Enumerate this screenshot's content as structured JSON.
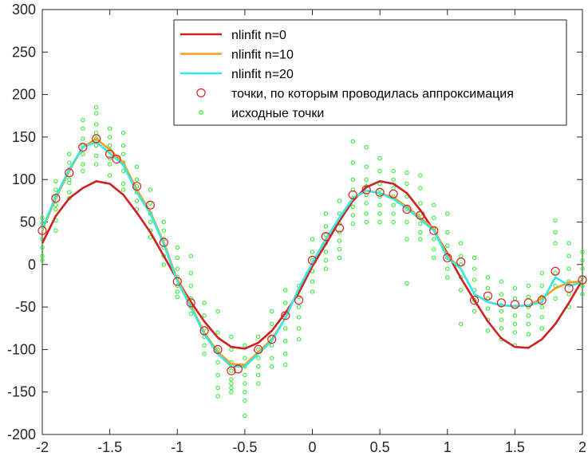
{
  "chart_data": {
    "type": "scatter",
    "xlim": [
      -2,
      2
    ],
    "ylim": [
      -200,
      300
    ],
    "x_ticks": [
      -2,
      -1.5,
      -1,
      -0.5,
      0,
      0.5,
      1,
      1.5,
      2
    ],
    "y_ticks": [
      -200,
      -150,
      -100,
      -50,
      0,
      50,
      100,
      150,
      200,
      250,
      300
    ],
    "x_tick_labels": [
      "-2",
      "-1.5",
      "-1",
      "-0.5",
      "0",
      "0.5",
      "1",
      "1.5",
      "2"
    ],
    "y_tick_labels": [
      "-200",
      "-150",
      "-100",
      "-50",
      "0",
      "50",
      "100",
      "150",
      "200",
      "250",
      "300"
    ],
    "grid": false,
    "legend_position": "top-right",
    "series": [
      {
        "name": "nlinfit n=0",
        "kind": "line",
        "color": "#cc2222",
        "x": [
          -2,
          -1.9,
          -1.8,
          -1.7,
          -1.6,
          -1.5,
          -1.4,
          -1.3,
          -1.2,
          -1.1,
          -1.0,
          -0.9,
          -0.8,
          -0.7,
          -0.6,
          -0.5,
          -0.4,
          -0.3,
          -0.2,
          -0.1,
          0.0,
          0.1,
          0.2,
          0.3,
          0.4,
          0.5,
          0.6,
          0.7,
          0.8,
          0.9,
          1.0,
          1.1,
          1.2,
          1.3,
          1.4,
          1.5,
          1.6,
          1.7,
          1.8,
          1.9,
          2.0
        ],
        "y": [
          25,
          57,
          78,
          90,
          98,
          95,
          82,
          61,
          38,
          10,
          -18,
          -44,
          -67,
          -86,
          -97,
          -99,
          -92,
          -78,
          -57,
          -33,
          -2,
          24,
          51,
          75,
          91,
          98,
          95,
          84,
          64,
          40,
          13,
          -16,
          -42,
          -67,
          -87,
          -97,
          -98,
          -88,
          -70,
          -45,
          -18
        ]
      },
      {
        "name": "nlinfit n=10",
        "kind": "line",
        "color": "#f0a020",
        "x": [
          -2,
          -1.9,
          -1.8,
          -1.7,
          -1.6,
          -1.5,
          -1.4,
          -1.3,
          -1.2,
          -1.1,
          -1.0,
          -0.9,
          -0.8,
          -0.7,
          -0.6,
          -0.5,
          -0.4,
          -0.3,
          -0.2,
          -0.1,
          0.0,
          0.1,
          0.2,
          0.3,
          0.4,
          0.5,
          0.6,
          0.7,
          0.8,
          0.9,
          1.0,
          1.1,
          1.2,
          1.3,
          1.4,
          1.5,
          1.6,
          1.7,
          1.8,
          1.9,
          2.0
        ],
        "y": [
          40,
          78,
          110,
          138,
          148,
          135,
          120,
          88,
          62,
          26,
          -18,
          -48,
          -80,
          -103,
          -117,
          -118,
          -103,
          -88,
          -63,
          -28,
          2,
          30,
          55,
          78,
          87,
          84,
          79,
          68,
          55,
          42,
          10,
          -5,
          -35,
          -44,
          -48,
          -49,
          -48,
          -40,
          -28,
          -21,
          -20
        ]
      },
      {
        "name": "nlinfit n=20",
        "kind": "line",
        "color": "#33e8e8",
        "x": [
          -2,
          -1.9,
          -1.8,
          -1.7,
          -1.6,
          -1.5,
          -1.4,
          -1.3,
          -1.2,
          -1.1,
          -1.0,
          -0.9,
          -0.8,
          -0.7,
          -0.6,
          -0.5,
          -0.4,
          -0.3,
          -0.2,
          -0.1,
          0.0,
          0.1,
          0.2,
          0.3,
          0.4,
          0.5,
          0.6,
          0.7,
          0.8,
          0.9,
          1.0,
          1.1,
          1.2,
          1.3,
          1.4,
          1.5,
          1.6,
          1.7,
          1.8,
          1.9,
          2.0
        ],
        "y": [
          42,
          80,
          112,
          138,
          144,
          131,
          117,
          85,
          60,
          24,
          -20,
          -50,
          -82,
          -105,
          -120,
          -120,
          -105,
          -90,
          -63,
          -28,
          2,
          30,
          55,
          78,
          87,
          84,
          77,
          66,
          53,
          40,
          8,
          -5,
          -35,
          -44,
          -48,
          -49,
          -48,
          -44,
          -15,
          -25,
          -21
        ]
      },
      {
        "name": "точки, по которым проводилась аппроксимация",
        "kind": "markers",
        "color": "#dd2222",
        "x": [
          -2.0,
          -1.9,
          -1.8,
          -1.7,
          -1.6,
          -1.5,
          -1.45,
          -1.3,
          -1.2,
          -1.1,
          -1.0,
          -0.9,
          -0.8,
          -0.7,
          -0.6,
          -0.55,
          -0.4,
          -0.3,
          -0.2,
          -0.1,
          0.0,
          0.1,
          0.2,
          0.3,
          0.4,
          0.5,
          0.6,
          0.7,
          0.8,
          0.9,
          1.0,
          1.1,
          1.2,
          1.3,
          1.4,
          1.5,
          1.6,
          1.7,
          1.8,
          1.9,
          2.0
        ],
        "y": [
          40,
          78,
          108,
          138,
          148,
          130,
          124,
          92,
          70,
          26,
          -20,
          -45,
          -78,
          -100,
          -125,
          -123,
          -100,
          -88,
          -60,
          -42,
          5,
          33,
          43,
          82,
          88,
          85,
          83,
          65,
          58,
          40,
          8,
          3,
          -42,
          -37,
          -45,
          -47,
          -45,
          -42,
          -8,
          -28,
          -18
        ]
      },
      {
        "name": "исходные точки",
        "kind": "markers-small",
        "color": "#22ee22",
        "x": [
          -2,
          -2,
          -2,
          -2,
          -2,
          -2,
          -1.9,
          -1.9,
          -1.9,
          -1.9,
          -1.9,
          -1.9,
          -1.9,
          -1.8,
          -1.8,
          -1.8,
          -1.8,
          -1.8,
          -1.8,
          -1.8,
          -1.7,
          -1.7,
          -1.7,
          -1.7,
          -1.7,
          -1.7,
          -1.7,
          -1.6,
          -1.6,
          -1.6,
          -1.6,
          -1.6,
          -1.6,
          -1.6,
          -1.6,
          -1.5,
          -1.5,
          -1.5,
          -1.5,
          -1.5,
          -1.5,
          -1.5,
          -1.4,
          -1.4,
          -1.4,
          -1.4,
          -1.4,
          -1.4,
          -1.4,
          -1.3,
          -1.3,
          -1.3,
          -1.3,
          -1.3,
          -1.3,
          -1.2,
          -1.2,
          -1.2,
          -1.2,
          -1.2,
          -1.2,
          -1.1,
          -1.1,
          -1.1,
          -1.1,
          -1.1,
          -1.1,
          -1.0,
          -1.0,
          -1.0,
          -1.0,
          -1.0,
          -1.0,
          -1.0,
          -0.9,
          -0.9,
          -0.9,
          -0.9,
          -0.9,
          -0.9,
          -0.8,
          -0.8,
          -0.8,
          -0.8,
          -0.8,
          -0.8,
          -0.7,
          -0.7,
          -0.7,
          -0.7,
          -0.7,
          -0.7,
          -0.7,
          -0.6,
          -0.6,
          -0.6,
          -0.6,
          -0.6,
          -0.6,
          -0.6,
          -0.6,
          -0.5,
          -0.5,
          -0.5,
          -0.5,
          -0.5,
          -0.5,
          -0.5,
          -0.5,
          -0.4,
          -0.4,
          -0.4,
          -0.4,
          -0.4,
          -0.4,
          -0.3,
          -0.3,
          -0.3,
          -0.3,
          -0.3,
          -0.3,
          -0.2,
          -0.2,
          -0.2,
          -0.2,
          -0.2,
          -0.2,
          -0.2,
          -0.1,
          -0.1,
          -0.1,
          -0.1,
          -0.1,
          -0.1,
          0.0,
          0.0,
          0.0,
          0.0,
          0.0,
          0.0,
          0.1,
          0.1,
          0.1,
          0.1,
          0.1,
          0.1,
          0.1,
          0.2,
          0.2,
          0.2,
          0.2,
          0.2,
          0.2,
          0.2,
          0.3,
          0.3,
          0.3,
          0.3,
          0.3,
          0.3,
          0.3,
          0.3,
          0.4,
          0.4,
          0.4,
          0.4,
          0.4,
          0.4,
          0.4,
          0.4,
          0.5,
          0.5,
          0.5,
          0.5,
          0.5,
          0.5,
          0.5,
          0.5,
          0.6,
          0.6,
          0.6,
          0.6,
          0.6,
          0.6,
          0.6,
          0.7,
          0.7,
          0.7,
          0.7,
          0.7,
          0.7,
          0.7,
          0.8,
          0.8,
          0.8,
          0.8,
          0.8,
          0.8,
          0.8,
          0.9,
          0.9,
          0.9,
          0.9,
          0.9,
          0.9,
          1.0,
          1.0,
          1.0,
          1.0,
          1.0,
          1.0,
          1.1,
          1.1,
          1.1,
          1.1,
          1.1,
          1.1,
          1.2,
          1.2,
          1.2,
          1.2,
          1.2,
          1.2,
          1.3,
          1.3,
          1.3,
          1.3,
          1.3,
          1.3,
          1.4,
          1.4,
          1.4,
          1.4,
          1.4,
          1.4,
          1.4,
          1.5,
          1.5,
          1.5,
          1.5,
          1.5,
          1.5,
          1.5,
          1.6,
          1.6,
          1.6,
          1.6,
          1.6,
          1.6,
          1.7,
          1.7,
          1.7,
          1.7,
          1.7,
          1.7,
          1.8,
          1.8,
          1.8,
          1.8,
          1.8,
          1.8,
          1.9,
          1.9,
          1.9,
          1.9,
          1.9,
          1.9,
          2.0,
          2.0,
          2.0,
          2.0,
          2.0,
          2.0
        ],
        "y": [
          55,
          48,
          30,
          20,
          10,
          5,
          98,
          88,
          80,
          70,
          65,
          52,
          40,
          130,
          120,
          112,
          100,
          96,
          85,
          78,
          170,
          160,
          148,
          140,
          130,
          118,
          110,
          185,
          178,
          165,
          155,
          148,
          140,
          128,
          118,
          160,
          150,
          140,
          135,
          125,
          118,
          105,
          155,
          140,
          130,
          120,
          110,
          95,
          88,
          115,
          100,
          92,
          85,
          75,
          65,
          88,
          72,
          60,
          50,
          40,
          32,
          50,
          40,
          30,
          20,
          10,
          0,
          20,
          8,
          -5,
          -15,
          -25,
          -32,
          -38,
          10,
          -10,
          -25,
          -40,
          -50,
          -58,
          -45,
          -60,
          -75,
          -85,
          -95,
          -105,
          -55,
          -80,
          -100,
          -115,
          -130,
          -145,
          -155,
          -85,
          -100,
          -115,
          -125,
          -135,
          -140,
          -145,
          -150,
          -95,
          -110,
          -120,
          -130,
          -140,
          -150,
          -160,
          -178,
          -85,
          -100,
          -110,
          -120,
          -130,
          -140,
          -55,
          -70,
          -85,
          -95,
          -110,
          -120,
          -30,
          -45,
          -60,
          -75,
          -90,
          -105,
          -118,
          -25,
          -38,
          -50,
          -62,
          -75,
          -88,
          30,
          15,
          5,
          -8,
          -20,
          -32,
          60,
          45,
          35,
          25,
          15,
          5,
          -5,
          75,
          60,
          48,
          38,
          28,
          18,
          8,
          145,
          120,
          100,
          88,
          78,
          68,
          58,
          48,
          138,
          115,
          100,
          92,
          82,
          72,
          60,
          50,
          125,
          110,
          95,
          88,
          80,
          70,
          60,
          50,
          110,
          100,
          90,
          80,
          70,
          60,
          50,
          108,
          95,
          80,
          65,
          50,
          30,
          -22,
          105,
          90,
          72,
          60,
          48,
          38,
          30,
          70,
          55,
          42,
          30,
          18,
          8,
          60,
          38,
          22,
          8,
          -5,
          -15,
          25,
          10,
          0,
          -15,
          -30,
          -70,
          8,
          -5,
          -18,
          -30,
          -42,
          -55,
          -15,
          -28,
          -40,
          -52,
          -65,
          -78,
          -20,
          -35,
          -48,
          -55,
          -65,
          -75,
          -88,
          -28,
          -40,
          -50,
          -60,
          -70,
          -80,
          -95,
          -25,
          -38,
          -50,
          -60,
          -70,
          -82,
          -10,
          -25,
          -38,
          -50,
          -62,
          -75,
          52,
          38,
          25,
          -10,
          -25,
          -40,
          25,
          10,
          -5,
          -20,
          -35,
          -50,
          15,
          5,
          -5,
          -15,
          -25,
          -35
        ]
      }
    ]
  }
}
